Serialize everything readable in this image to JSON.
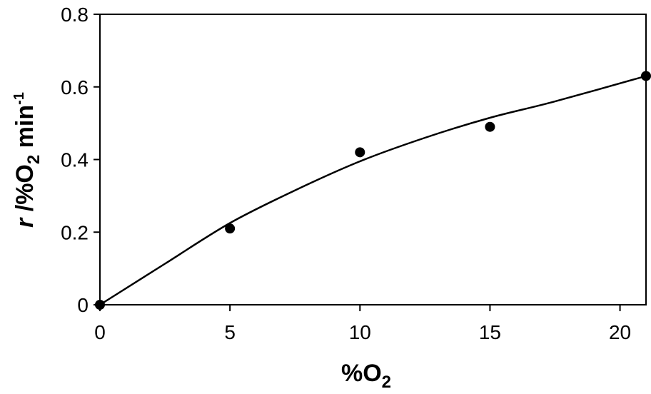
{
  "chart_data": {
    "type": "scatter",
    "title": "",
    "xlabel": {
      "main": "%O",
      "sub": "2"
    },
    "ylabel": {
      "r": "r",
      "mid": " /%O",
      "sub": "2",
      "unit": " min",
      "sup": "-1"
    },
    "xlim": [
      0,
      21
    ],
    "ylim": [
      0,
      0.8
    ],
    "xticks": [
      0,
      5,
      10,
      15,
      20
    ],
    "xtick_labels": [
      "0",
      "5",
      "10",
      "15",
      "20"
    ],
    "yticks": [
      0,
      0.2,
      0.4,
      0.6,
      0.8
    ],
    "ytick_labels": [
      "0",
      "0.2",
      "0.4",
      "0.6",
      "0.8"
    ],
    "grid": false,
    "legend": "none",
    "series": [
      {
        "kind": "points",
        "color": "#000000",
        "x": [
          0,
          5,
          10,
          15,
          21
        ],
        "y": [
          0,
          0.21,
          0.42,
          0.49,
          0.63
        ]
      },
      {
        "kind": "fit-line",
        "color": "#000000",
        "x": [
          0,
          2.5,
          5,
          7.5,
          10,
          12.5,
          15,
          17.5,
          21
        ],
        "y": [
          0,
          0.113,
          0.225,
          0.315,
          0.395,
          0.46,
          0.515,
          0.56,
          0.63
        ]
      }
    ]
  }
}
